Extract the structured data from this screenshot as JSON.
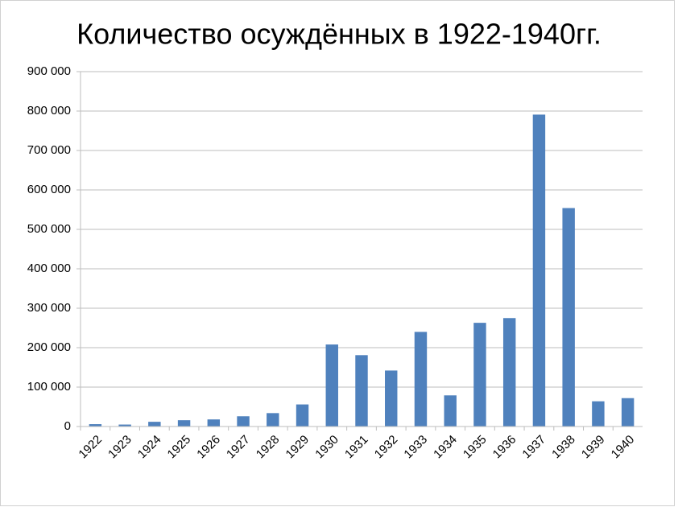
{
  "chart_data": {
    "type": "bar",
    "title": "Количество осуждённых в 1922-1940гг.",
    "categories": [
      "1922",
      "1923",
      "1924",
      "1925",
      "1926",
      "1927",
      "1928",
      "1929",
      "1930",
      "1931",
      "1932",
      "1933",
      "1934",
      "1935",
      "1936",
      "1937",
      "1938",
      "1939",
      "1940"
    ],
    "values": [
      6000,
      5000,
      12000,
      16000,
      18000,
      26000,
      34000,
      56000,
      208000,
      181000,
      142000,
      240000,
      79000,
      263000,
      275000,
      791000,
      554000,
      64000,
      72000
    ],
    "color": "#4f81bd",
    "ylim": [
      0,
      900000
    ],
    "yticks": [
      0,
      {
        "value": 100000,
        "label": "100 000"
      },
      {
        "value": 200000,
        "label": "200 000"
      },
      {
        "value": 300000,
        "label": "300 000"
      },
      {
        "value": 400000,
        "label": "400 000"
      },
      {
        "value": 500000,
        "label": "500 000"
      },
      {
        "value": 600000,
        "label": "600 000"
      },
      {
        "value": 700000,
        "label": "700 000"
      },
      {
        "value": 800000,
        "label": "800 000"
      },
      {
        "value": 900000,
        "label": "900 000"
      }
    ],
    "grid": true
  }
}
